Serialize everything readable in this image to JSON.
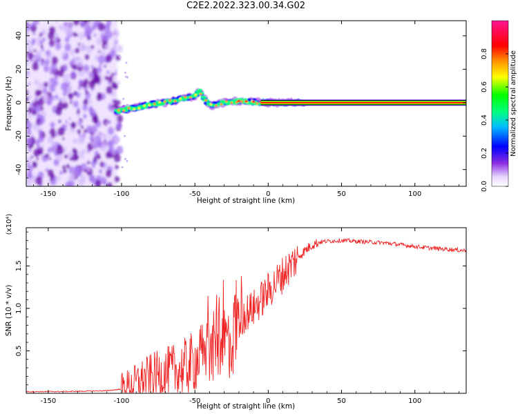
{
  "title": "C2E2.2022.323.00.34.G02",
  "chart_data": [
    {
      "type": "heatmap",
      "title": "",
      "xlabel": "Height of straight line (km)",
      "ylabel": "Frequency (Hz)",
      "xlim": [
        -165,
        135
      ],
      "ylim": [
        -50,
        49
      ],
      "xticks": [
        -150,
        -100,
        -50,
        0,
        50,
        100
      ],
      "yticks": [
        -40,
        -20,
        0,
        20,
        40
      ],
      "colorbar": {
        "label": "Normalized spectral amplitude",
        "range": [
          0,
          1
        ],
        "ticks": [
          0.0,
          0.2,
          0.4,
          0.6,
          0.8
        ],
        "colormap": [
          "#ffffff",
          "#8a2be2",
          "#0000ff",
          "#00bfff",
          "#00ff7f",
          "#00ff00",
          "#ffff00",
          "#ff8c00",
          "#ff0000",
          "#ff00ff"
        ]
      },
      "features": {
        "noise_region_x": [
          -165,
          -103
        ],
        "doppler_trace": {
          "x": [
            -103,
            -90,
            -80,
            -70,
            -60,
            -50,
            -47,
            -40,
            -30,
            -20,
            -10,
            0,
            10,
            20,
            135
          ],
          "y": [
            -5,
            -3,
            -1,
            0,
            2,
            4,
            7,
            -2,
            0,
            1,
            0.5,
            0,
            0,
            0,
            0
          ]
        }
      }
    },
    {
      "type": "line",
      "title": "",
      "xlabel": "Height of straight line (km)",
      "ylabel": "SNR (10 * v/v)",
      "y_multiplier": "(x10⁴)",
      "xlim": [
        -165,
        135
      ],
      "ylim": [
        0,
        1.95
      ],
      "xticks": [
        -150,
        -100,
        -50,
        0,
        50,
        100
      ],
      "yticks": [
        0.5,
        1.0,
        1.5
      ],
      "ytick_labels": [
        "0.5",
        "1.0",
        "1.5"
      ],
      "color": "#ee2222",
      "series": [
        {
          "x": [
            -165,
            -140,
            -110,
            -100,
            -95,
            -90,
            -85,
            -80,
            -75,
            -70,
            -65,
            -60,
            -55,
            -50,
            -45,
            -40,
            -35,
            -30,
            -25,
            -20,
            -15,
            -10,
            -5,
            0,
            5,
            10,
            15,
            20,
            25,
            30,
            35,
            40,
            50,
            60,
            70,
            80,
            90,
            100,
            110,
            120,
            135
          ],
          "y": [
            0.02,
            0.02,
            0.03,
            0.05,
            0.08,
            0.12,
            0.17,
            0.2,
            0.22,
            0.24,
            0.26,
            0.28,
            0.32,
            0.38,
            0.45,
            0.52,
            0.58,
            0.65,
            0.6,
            0.85,
            0.95,
            1.0,
            1.1,
            1.2,
            1.3,
            1.4,
            1.5,
            1.6,
            1.68,
            1.75,
            1.78,
            1.79,
            1.8,
            1.79,
            1.78,
            1.77,
            1.75,
            1.73,
            1.71,
            1.7,
            1.68
          ]
        }
      ]
    }
  ]
}
